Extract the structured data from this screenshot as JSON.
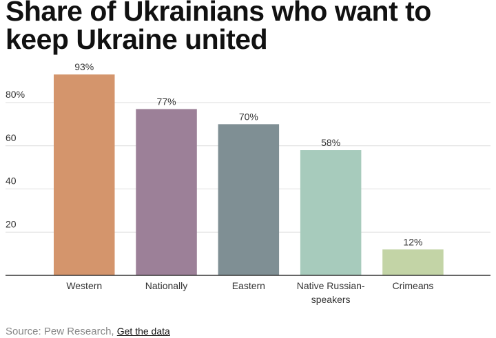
{
  "chart_data": {
    "type": "bar",
    "title": "Share of Ukrainians who want to keep Ukraine united",
    "categories": [
      "Western",
      "Nationally",
      "Eastern",
      "Native Russian-speakers",
      "Crimeans"
    ],
    "category_lines": [
      [
        "Western"
      ],
      [
        "Nationally"
      ],
      [
        "Eastern"
      ],
      [
        "Native Russian-",
        "speakers"
      ],
      [
        "Crimeans"
      ]
    ],
    "values": [
      93,
      77,
      70,
      58,
      12
    ],
    "data_labels": [
      "93%",
      "77%",
      "70%",
      "58%",
      "12%"
    ],
    "colors": [
      "#d4956c",
      "#9c8098",
      "#7f8f94",
      "#a7cbbc",
      "#c3d4a6"
    ],
    "yticks": [
      20,
      40,
      60,
      80
    ],
    "ytick_labels": [
      "20",
      "40",
      "60",
      "80%"
    ],
    "ylim": [
      0,
      100
    ],
    "xlabel": "",
    "ylabel": "",
    "grid": true,
    "legend": "none"
  },
  "footer": {
    "source": "Source: Pew Research,",
    "link": "Get the data"
  }
}
